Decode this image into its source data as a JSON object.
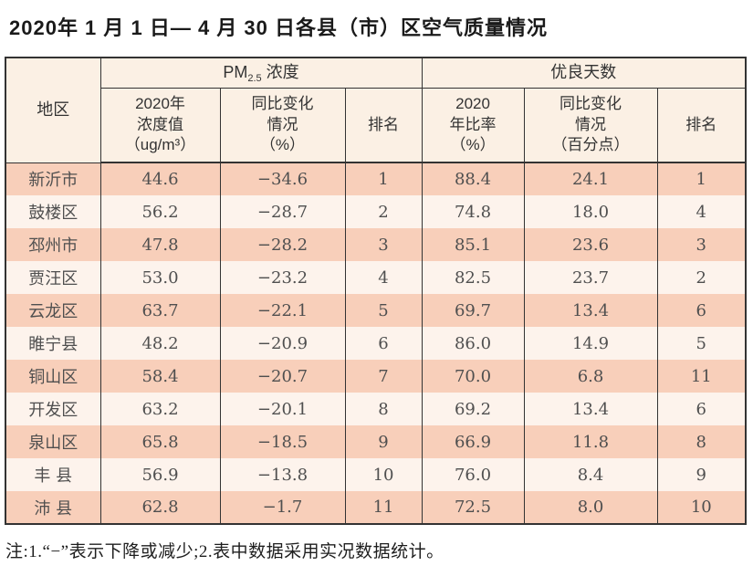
{
  "title": "2020年 1 月 1 日— 4 月 30 日各县（市）区空气质量情况",
  "table": {
    "region_header": "地区",
    "pm_group": {
      "prefix": "PM",
      "sub": "2.5",
      "suffix": " 浓度"
    },
    "good_group": "优良天数",
    "sub_headers": [
      "2020年\n浓度值\n（ug/m³）",
      "同比变化\n情况\n（%）",
      "排名",
      "2020\n年比率\n（%）",
      "同比变化\n情况\n（百分点）",
      "排名"
    ],
    "rows": [
      {
        "region": "新沂市",
        "pm_value": "44.6",
        "pm_change": "−34.6",
        "pm_rank": "1",
        "good_ratio": "88.4",
        "good_change": "24.1",
        "good_rank": "1"
      },
      {
        "region": "鼓楼区",
        "pm_value": "56.2",
        "pm_change": "−28.7",
        "pm_rank": "2",
        "good_ratio": "74.8",
        "good_change": "18.0",
        "good_rank": "4"
      },
      {
        "region": "邳州市",
        "pm_value": "47.8",
        "pm_change": "−28.2",
        "pm_rank": "3",
        "good_ratio": "85.1",
        "good_change": "23.6",
        "good_rank": "3"
      },
      {
        "region": "贾汪区",
        "pm_value": "53.0",
        "pm_change": "−23.2",
        "pm_rank": "4",
        "good_ratio": "82.5",
        "good_change": "23.7",
        "good_rank": "2"
      },
      {
        "region": "云龙区",
        "pm_value": "63.7",
        "pm_change": "−22.1",
        "pm_rank": "5",
        "good_ratio": "69.7",
        "good_change": "13.4",
        "good_rank": "6"
      },
      {
        "region": "睢宁县",
        "pm_value": "48.2",
        "pm_change": "−20.9",
        "pm_rank": "6",
        "good_ratio": "86.0",
        "good_change": "14.9",
        "good_rank": "5"
      },
      {
        "region": "铜山区",
        "pm_value": "58.4",
        "pm_change": "−20.7",
        "pm_rank": "7",
        "good_ratio": "70.0",
        "good_change": "6.8",
        "good_rank": "11"
      },
      {
        "region": "开发区",
        "pm_value": "63.2",
        "pm_change": "−20.1",
        "pm_rank": "8",
        "good_ratio": "69.2",
        "good_change": "13.4",
        "good_rank": "6"
      },
      {
        "region": "泉山区",
        "pm_value": "65.8",
        "pm_change": "−18.5",
        "pm_rank": "9",
        "good_ratio": "66.9",
        "good_change": "11.8",
        "good_rank": "8"
      },
      {
        "region": "丰 县",
        "pm_value": "56.9",
        "pm_change": "−13.8",
        "pm_rank": "10",
        "good_ratio": "76.0",
        "good_change": "8.4",
        "good_rank": "9"
      },
      {
        "region": "沛 县",
        "pm_value": "62.8",
        "pm_change": "−1.7",
        "pm_rank": "11",
        "good_ratio": "72.5",
        "good_change": "8.0",
        "good_rank": "10"
      }
    ]
  },
  "note": "注:1.“−”表示下降或减少;2.表中数据采用实况数据统计。",
  "colors": {
    "row_odd": "#f8cfba",
    "row_even": "#fdf3ec",
    "header_bg": "#fbf0e4",
    "border": "#333333"
  }
}
